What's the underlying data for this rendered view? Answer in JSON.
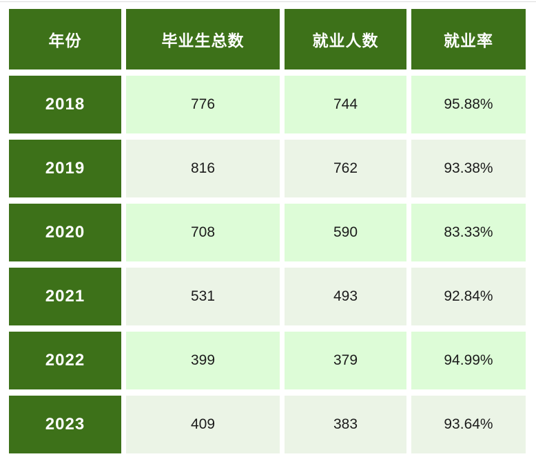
{
  "colors": {
    "header_bg": "#3d7119",
    "header_text": "#ffffff",
    "row_bg_bright": "#ddfcd7",
    "row_bg_muted": "#ebf4e6",
    "value_text": "#1b1b1b",
    "top_rule": "#dcdcdc"
  },
  "table": {
    "headers": {
      "year": "年份",
      "total": "毕业生总数",
      "employed": "就业人数",
      "rate": "就业率"
    },
    "rows": [
      {
        "year": "2018",
        "total": "776",
        "employed": "744",
        "rate": "95.88%"
      },
      {
        "year": "2019",
        "total": "816",
        "employed": "762",
        "rate": "93.38%"
      },
      {
        "year": "2020",
        "total": "708",
        "employed": "590",
        "rate": "83.33%"
      },
      {
        "year": "2021",
        "total": "531",
        "employed": "493",
        "rate": "92.84%"
      },
      {
        "year": "2022",
        "total": "399",
        "employed": "379",
        "rate": "94.99%"
      },
      {
        "year": "2023",
        "total": "409",
        "employed": "383",
        "rate": "93.64%"
      }
    ]
  },
  "chart_data": {
    "type": "table",
    "title": "",
    "columns": [
      "年份",
      "毕业生总数",
      "就业人数",
      "就业率"
    ],
    "rows": [
      [
        "2018",
        776,
        744,
        "95.88%"
      ],
      [
        "2019",
        816,
        762,
        "93.38%"
      ],
      [
        "2020",
        708,
        590,
        "83.33%"
      ],
      [
        "2021",
        531,
        493,
        "92.84%"
      ],
      [
        "2022",
        399,
        379,
        "94.99%"
      ],
      [
        "2023",
        409,
        383,
        "93.64%"
      ]
    ]
  }
}
